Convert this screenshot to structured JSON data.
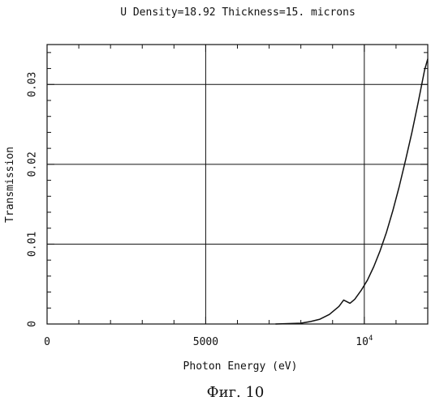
{
  "chart_data": {
    "type": "line",
    "title": "U Density=18.92 Thickness=15. microns",
    "xlabel": "Photon Energy (eV)",
    "ylabel": "Transmission",
    "xlim": [
      0,
      12000
    ],
    "ylim": [
      0,
      0.035
    ],
    "x_ticks": [
      {
        "value": 0,
        "label": "0"
      },
      {
        "value": 5000,
        "label": "5000"
      }
    ],
    "x_tick_power": {
      "value": 10000,
      "base": "10",
      "exp": "4"
    },
    "y_ticks": [
      {
        "value": 0,
        "label": "0"
      },
      {
        "value": 0.01,
        "label": "0.01"
      },
      {
        "value": 0.02,
        "label": "0.02"
      },
      {
        "value": 0.03,
        "label": "0.03"
      }
    ],
    "grid": true,
    "series": [
      {
        "x": [
          7200,
          7600,
          8000,
          8300,
          8600,
          8900,
          9200,
          9350,
          9450,
          9550,
          9700,
          9900,
          10100,
          10300,
          10500,
          10700,
          10900,
          11100,
          11300,
          11500,
          11700,
          11900,
          12000
        ],
        "y": [
          0.0,
          5e-05,
          0.0001,
          0.0003,
          0.0006,
          0.0012,
          0.0022,
          0.003,
          0.0028,
          0.0026,
          0.0031,
          0.0042,
          0.0055,
          0.0072,
          0.0092,
          0.0115,
          0.0142,
          0.0172,
          0.0205,
          0.024,
          0.0278,
          0.0318,
          0.0332
        ]
      }
    ]
  },
  "caption": "Фиг. 10"
}
